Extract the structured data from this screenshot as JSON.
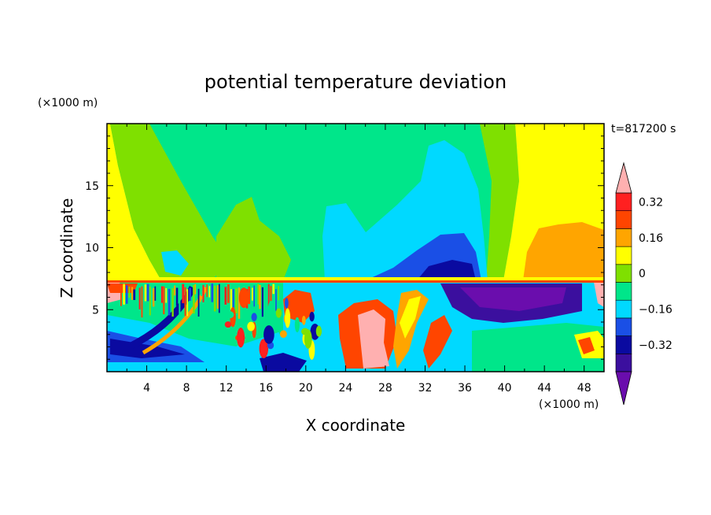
{
  "chart_data": {
    "type": "heatmap",
    "title": "potential temperature deviation",
    "xlabel": "X coordinate",
    "ylabel": "Z coordinate",
    "x_unit": "(×1000 m)",
    "y_unit": "(×1000 m)",
    "time_label": "t=817200 s",
    "xlim": [
      0,
      50
    ],
    "ylim": [
      0,
      20
    ],
    "x_ticks": [
      4,
      8,
      12,
      16,
      20,
      24,
      28,
      32,
      36,
      40,
      44,
      48
    ],
    "y_ticks": [
      5,
      10,
      15
    ],
    "colorbar": {
      "levels": [
        -0.44,
        -0.36,
        -0.28,
        -0.2,
        -0.12,
        -0.04,
        0.04,
        0.12,
        0.2,
        0.28,
        0.36
      ],
      "colors": [
        "#6a0dad",
        "#3b0f9e",
        "#0a0aa0",
        "#1a4fe6",
        "#00d9ff",
        "#00e68a",
        "#7fe000",
        "#ffff00",
        "#ffa500",
        "#ff4500",
        "#ff2020",
        "#ffb0b0"
      ],
      "tick_labels": [
        "0.32",
        "0.16",
        "0",
        "−0.16",
        "−0.32"
      ],
      "tick_values": [
        0.32,
        0.16,
        0,
        -0.16,
        -0.32
      ]
    }
  }
}
